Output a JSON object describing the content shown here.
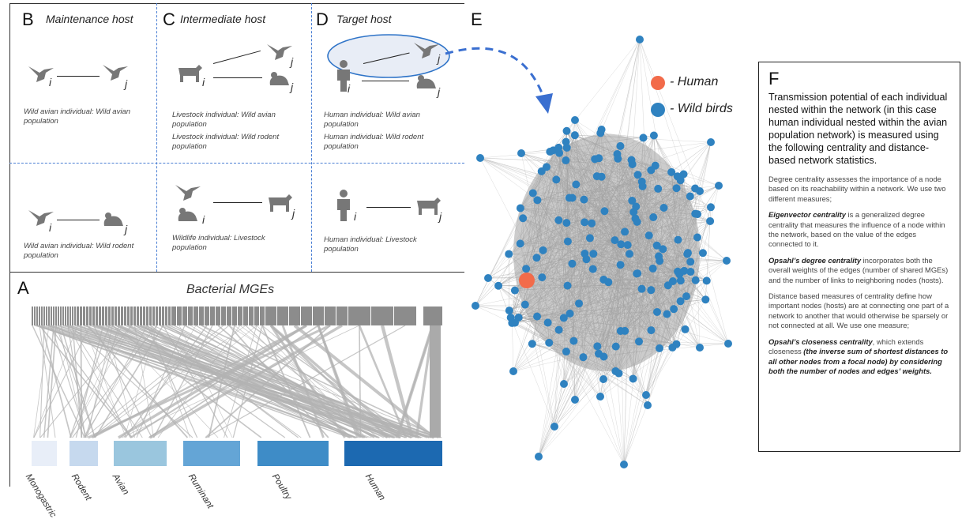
{
  "panels": {
    "B": {
      "label": "B",
      "title": "Maintenance host",
      "top_caption": "Wild avian individual: Wild avian population",
      "bottom_caption": "Wild avian individual: Wild rodent population"
    },
    "C": {
      "label": "C",
      "title": "Intermediate host",
      "top_caption_1": "Livestock individual: Wild avian population",
      "top_caption_2": "Livestock individual: Wild rodent population",
      "bottom_caption": "Wildlife individual: Livestock population"
    },
    "D": {
      "label": "D",
      "title": "Target host",
      "top_caption_1": "Human individual: Wild avian population",
      "top_caption_2": "Human individual: Wild rodent population",
      "bottom_caption": "Human individual: Livestock population"
    },
    "E": {
      "label": "E"
    },
    "A": {
      "label": "A",
      "title": "Bacterial MGEs"
    },
    "F": {
      "label": "F"
    }
  },
  "subscripts": {
    "i": "i",
    "j": "j"
  },
  "icons": [
    "bird-icon",
    "rodent-icon",
    "cow-icon",
    "human-icon"
  ],
  "network_legend": [
    {
      "label": "- Human",
      "color": "#f26b4a"
    },
    {
      "label": "- Wild birds",
      "color": "#2f82c0"
    }
  ],
  "hosts": [
    {
      "label": "Monogastric",
      "color": "#e8eef8"
    },
    {
      "label": "Rodent",
      "color": "#c6d9ee"
    },
    {
      "label": "Avian",
      "color": "#9ac6de"
    },
    {
      "label": "Ruminant",
      "color": "#64a5d6"
    },
    {
      "label": "Poultry",
      "color": "#3e8cc7"
    },
    {
      "label": "Human",
      "color": "#1c69b1"
    }
  ],
  "text_panel": {
    "intro": "Transmission potential of each individual nested within the network (in this case human individual nested within the avian population network) is measured using the following centrality and distance-based network statistics.",
    "p1": "Degree centrality assesses the importance of a node based on its reachability within a network. We use two different measures;",
    "p2_term": "Eigenvector centrality",
    "p2_text": " is a generalized degree centrality that measures the influence of a node within the network, based on the value of the edges connected to it.",
    "p3_term": "Opsahl’s degree centrality",
    "p3_text": " incorporates both the overall weights of the edges (number of shared MGEs) and the number of links to neighboring nodes (hosts).",
    "p4": "Distance based measures of centrality define how important nodes (hosts) are at connecting one part of a network to another that would otherwise be sparsely or not connected at all. We use one measure;",
    "p5_term": "Opsahl’s closeness centrality",
    "p5_text": ", which extends closeness ",
    "p5_paren": "(the inverse sum of shortest distances to all other nodes from a focal node) by considering both the number of nodes and edges’ weights."
  },
  "colors": {
    "human_node": "#f26b4a",
    "bird_node": "#2f82c0",
    "edge": "#9a9a9a",
    "mge_bar": "#8c8c8c",
    "arrow": "#3a6fd0"
  }
}
